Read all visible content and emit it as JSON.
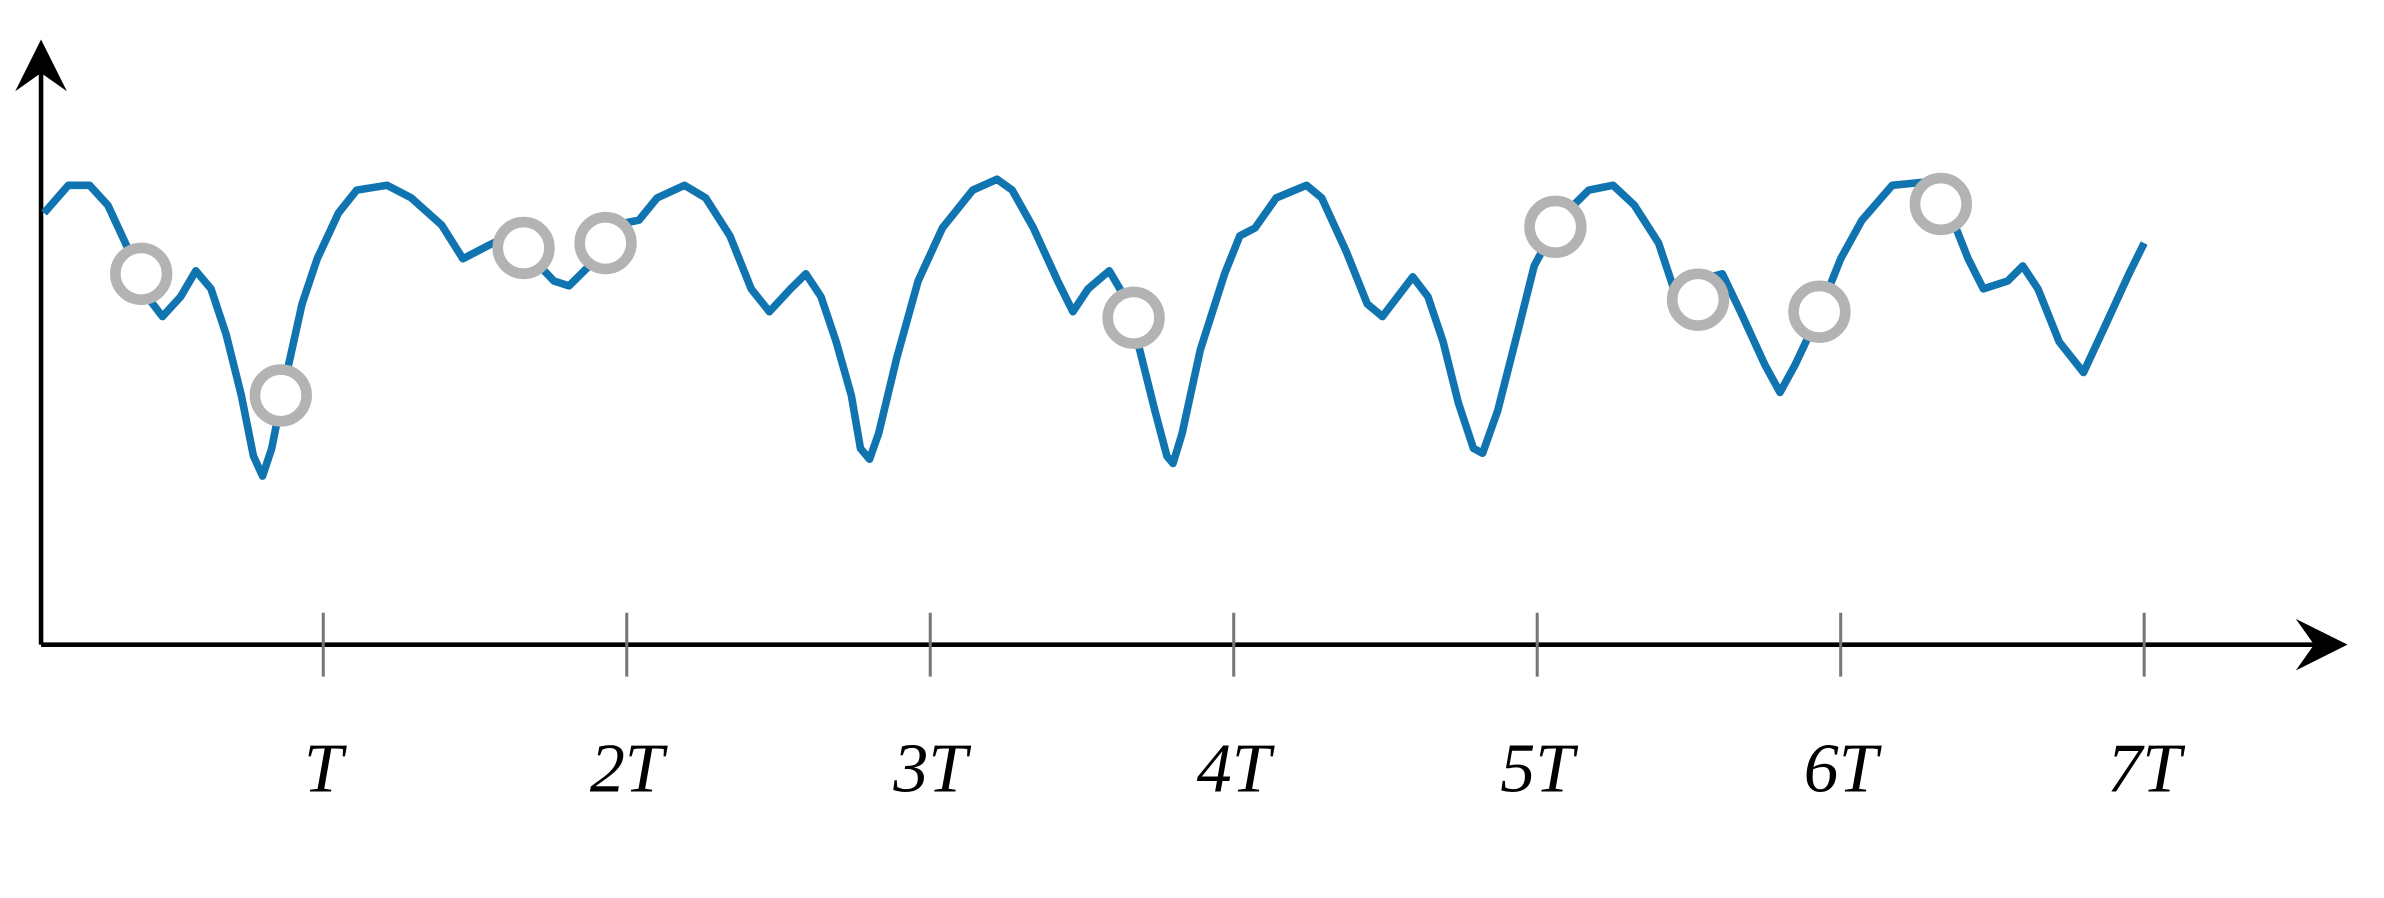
{
  "chart_data": {
    "type": "line",
    "xlim": [
      0.07,
      7.65
    ],
    "ylim": [
      0,
      10
    ],
    "xticks": [
      {
        "value": 1,
        "label": "T"
      },
      {
        "value": 2,
        "label": "2T"
      },
      {
        "value": 3,
        "label": "3T"
      },
      {
        "value": 4,
        "label": "4T"
      },
      {
        "value": 5,
        "label": "5T"
      },
      {
        "value": 6,
        "label": "6T"
      },
      {
        "value": 7,
        "label": "7T"
      }
    ],
    "series": [
      {
        "type": "line",
        "color": "#0f74b0",
        "x": [
          0.08,
          0.16,
          0.23,
          0.29,
          0.36,
          0.42,
          0.47,
          0.53,
          0.58,
          0.63,
          0.68,
          0.73,
          0.77,
          0.8,
          0.83,
          0.88,
          0.93,
          0.98,
          1.05,
          1.11,
          1.21,
          1.29,
          1.39,
          1.46,
          1.54,
          1.61,
          1.69,
          1.76,
          1.81,
          1.89,
          1.96,
          2.04,
          2.1,
          2.19,
          2.26,
          2.34,
          2.41,
          2.47,
          2.54,
          2.59,
          2.64,
          2.69,
          2.74,
          2.77,
          2.8,
          2.83,
          2.89,
          2.96,
          3.04,
          3.14,
          3.22,
          3.27,
          3.34,
          3.42,
          3.47,
          3.52,
          3.59,
          3.64,
          3.69,
          3.74,
          3.78,
          3.8,
          3.83,
          3.89,
          3.97,
          4.02,
          4.07,
          4.14,
          4.24,
          4.29,
          4.37,
          4.44,
          4.49,
          4.54,
          4.59,
          4.64,
          4.69,
          4.74,
          4.79,
          4.82,
          4.87,
          4.94,
          4.99,
          5.07,
          5.17,
          5.25,
          5.32,
          5.4,
          5.45,
          5.52,
          5.61,
          5.67,
          5.75,
          5.8,
          5.85,
          5.92,
          6.0,
          6.07,
          6.17,
          6.27,
          6.35,
          6.42,
          6.47,
          6.55,
          6.6,
          6.65,
          6.72,
          6.8,
          6.87,
          6.95,
          7.0
        ],
        "values": [
          7.17,
          7.63,
          7.63,
          7.3,
          6.54,
          5.78,
          5.45,
          5.78,
          6.21,
          5.91,
          5.15,
          4.14,
          3.13,
          2.8,
          3.26,
          4.52,
          5.66,
          6.41,
          7.17,
          7.55,
          7.63,
          7.42,
          6.97,
          6.41,
          6.62,
          6.79,
          6.41,
          6.04,
          5.96,
          6.36,
          6.97,
          7.05,
          7.42,
          7.63,
          7.42,
          6.79,
          5.91,
          5.53,
          5.91,
          6.16,
          5.78,
          5.03,
          4.14,
          3.26,
          3.08,
          3.51,
          4.77,
          6.04,
          6.92,
          7.55,
          7.73,
          7.55,
          6.92,
          6.04,
          5.53,
          5.91,
          6.21,
          5.78,
          4.9,
          3.89,
          3.13,
          3.01,
          3.51,
          4.9,
          6.16,
          6.79,
          6.92,
          7.42,
          7.63,
          7.42,
          6.54,
          5.66,
          5.45,
          5.78,
          6.11,
          5.78,
          5.03,
          4.02,
          3.26,
          3.18,
          3.89,
          5.28,
          6.29,
          7.05,
          7.55,
          7.63,
          7.3,
          6.67,
          5.91,
          6.04,
          6.16,
          5.53,
          4.65,
          4.19,
          4.65,
          5.4,
          6.41,
          7.05,
          7.63,
          7.68,
          7.3,
          6.41,
          5.91,
          6.04,
          6.29,
          5.91,
          5.03,
          4.52,
          5.28,
          6.16,
          6.67
        ]
      },
      {
        "type": "scatter",
        "color": "#b3b3b3",
        "x": [
          0.4,
          0.86,
          1.66,
          1.93,
          3.67,
          5.06,
          5.53,
          5.93,
          6.33
        ],
        "values": [
          6.16,
          4.14,
          6.59,
          6.67,
          5.43,
          6.94,
          5.73,
          5.53,
          7.32
        ]
      }
    ]
  }
}
